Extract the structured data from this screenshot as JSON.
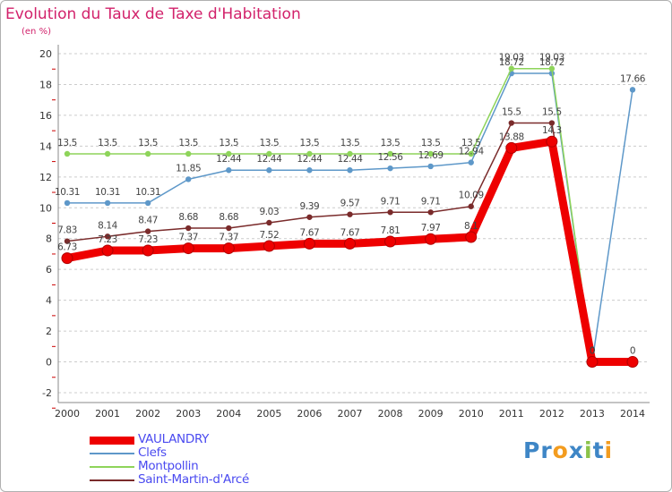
{
  "colors": {
    "title": "#d2226b",
    "axis_text": "#333333",
    "label_text": "#444444",
    "grid": "#cccccc",
    "tick": "#cc0000"
  },
  "logo": {
    "parts": [
      {
        "text": "Pr",
        "color": "#3e86c6"
      },
      {
        "text": "o",
        "color": "#f39c1f"
      },
      {
        "text": "x",
        "color": "#3e86c6"
      },
      {
        "text": "i",
        "color": "#8bc34a"
      },
      {
        "text": "t",
        "color": "#3e86c6"
      },
      {
        "text": "i",
        "color": "#f39c1f"
      }
    ]
  },
  "chart_data": {
    "type": "line",
    "title": "Evolution du Taux de Taxe d'Habitation",
    "unit": "(en %)",
    "x": [
      "2000",
      "2001",
      "2002",
      "2003",
      "2004",
      "2005",
      "2006",
      "2007",
      "2008",
      "2009",
      "2010",
      "2011",
      "2012",
      "2013",
      "2014"
    ],
    "ylim": [
      -2,
      20
    ],
    "yticks": [
      "-2",
      "0",
      "2",
      "4",
      "6",
      "8",
      "10",
      "12",
      "14",
      "16",
      "18",
      "20"
    ],
    "grid": "horizontal dashed",
    "legend_position": "bottom-left",
    "series": [
      {
        "name": "VAULANDRY",
        "color": "#ee0000",
        "style": "thick",
        "values": [
          6.73,
          7.23,
          7.23,
          7.37,
          7.37,
          7.52,
          7.67,
          7.67,
          7.81,
          7.97,
          8.1,
          13.88,
          14.3,
          0,
          0
        ],
        "labels": [
          "6.73",
          "7.23",
          "7.23",
          "7.37",
          "7.37",
          "7.52",
          "7.67",
          "7.67",
          "7.81",
          "7.97",
          "8.1",
          "13.88",
          "14.3",
          "0",
          "0"
        ]
      },
      {
        "name": "Clefs",
        "color": "#5e98c9",
        "style": "thin",
        "values": [
          10.31,
          10.31,
          10.31,
          11.85,
          12.44,
          12.44,
          12.44,
          12.44,
          12.56,
          12.69,
          12.94,
          18.72,
          18.72,
          0,
          17.66
        ],
        "labels": [
          "10.31",
          "10.31",
          "10.31",
          "11.85",
          "12.44",
          "12.44",
          "12.44",
          "12.44",
          "12.56",
          "12.69",
          "12.94",
          "18.72",
          "18.72",
          "0",
          "17.66"
        ]
      },
      {
        "name": "Montpollin",
        "color": "#8ed45a",
        "style": "thin",
        "values": [
          13.5,
          13.5,
          13.5,
          13.5,
          13.5,
          13.5,
          13.5,
          13.5,
          13.5,
          13.5,
          13.5,
          19.03,
          19.03,
          0,
          null
        ],
        "labels": [
          "13.5",
          "13.5",
          "13.5",
          "13.5",
          "13.5",
          "13.5",
          "13.5",
          "13.5",
          "13.5",
          "13.5",
          "13.5",
          "19.03",
          "19.03",
          "0",
          ""
        ]
      },
      {
        "name": "Saint-Martin-d'Arcé",
        "color": "#7a2b2b",
        "style": "thin",
        "values": [
          7.83,
          8.14,
          8.47,
          8.68,
          8.68,
          9.03,
          9.39,
          9.57,
          9.71,
          9.71,
          10.09,
          15.5,
          15.5,
          0,
          null
        ],
        "labels": [
          "7.83",
          "8.14",
          "8.47",
          "8.68",
          "8.68",
          "9.03",
          "9.39",
          "9.57",
          "9.71",
          "9.71",
          "10.09",
          "15.5",
          "15.5",
          "0",
          ""
        ]
      }
    ]
  }
}
